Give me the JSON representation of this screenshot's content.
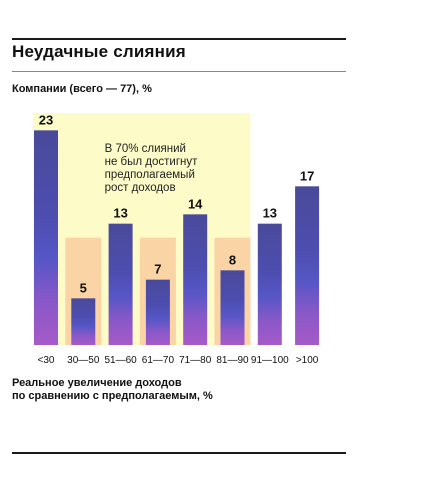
{
  "header": {
    "title": "Неудачные слияния",
    "subtitle": "Компании (всего — 77), %"
  },
  "x_axis_title": [
    "Реальное увеличение доходов",
    "по сравнению с предполагаемым, %"
  ],
  "annotation": {
    "lines": [
      "В 70% слияний",
      "не был достигнут",
      "предполагаемый",
      "рост доходов"
    ]
  },
  "colors": {
    "highlight_band": "#fdfcc8",
    "failed_column_bg": "#fbd4a6",
    "bar_top": "#4a4a9a",
    "bar_mid": "#5656c6",
    "bar_bottom": "#9e58c8"
  },
  "chart_data": {
    "type": "bar",
    "categories": [
      "<30",
      "30—50",
      "51—60",
      "61—70",
      "71—80",
      "81—90",
      "91—100",
      ">100"
    ],
    "values": [
      23,
      5,
      13,
      7,
      14,
      8,
      13,
      17
    ],
    "ylim": [
      0,
      24
    ],
    "highlight_categories": [
      "<30",
      "30—50",
      "51—60",
      "61—70",
      "71—80",
      "81—90"
    ]
  }
}
